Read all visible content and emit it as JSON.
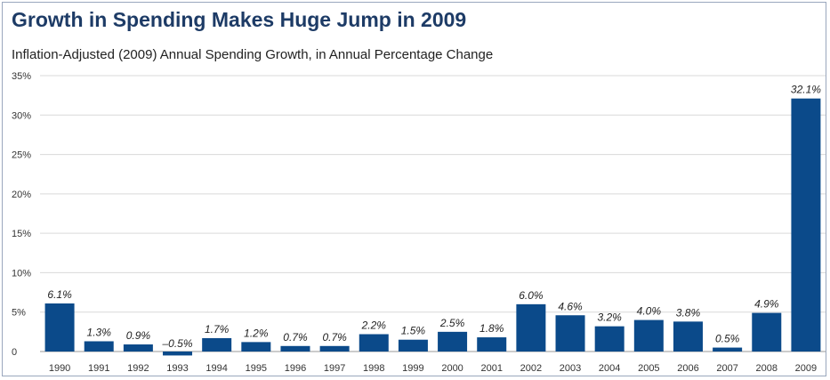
{
  "header": {
    "title": "Growth in Spending Makes Huge Jump in 2009",
    "subtitle": "Inflation-Adjusted (2009) Annual Spending Growth, in Annual Percentage Change"
  },
  "colors": {
    "bar": "#0b4a8a",
    "grid": "#d9d9d9",
    "text": "#333333",
    "title": "#1d3b66"
  },
  "chart_data": {
    "type": "bar",
    "title": "Growth in Spending Makes Huge Jump in 2009",
    "subtitle": "Inflation-Adjusted (2009) Annual Spending Growth, in Annual Percentage Change",
    "xlabel": "",
    "ylabel": "",
    "categories": [
      "1990",
      "1991",
      "1992",
      "1993",
      "1994",
      "1995",
      "1996",
      "1997",
      "1998",
      "1999",
      "2000",
      "2001",
      "2002",
      "2003",
      "2004",
      "2005",
      "2006",
      "2007",
      "2008",
      "2009"
    ],
    "values": [
      6.1,
      1.3,
      0.9,
      -0.5,
      1.7,
      1.2,
      0.7,
      0.7,
      2.2,
      1.5,
      2.5,
      1.8,
      6.0,
      4.6,
      3.2,
      4.0,
      3.8,
      0.5,
      4.9,
      32.1
    ],
    "data_labels": [
      "6.1%",
      "1.3%",
      "0.9%",
      "–0.5%",
      "1.7%",
      "1.2%",
      "0.7%",
      "0.7%",
      "2.2%",
      "1.5%",
      "2.5%",
      "1.8%",
      "6.0%",
      "4.6%",
      "3.2%",
      "4.0%",
      "3.8%",
      "0.5%",
      "4.9%",
      "32.1%"
    ],
    "y_ticks": [
      0,
      5,
      10,
      15,
      20,
      25,
      30,
      35
    ],
    "y_tick_labels": [
      "0",
      "5%",
      "10%",
      "15%",
      "20%",
      "25%",
      "30%",
      "35%"
    ],
    "ylim": [
      -0.8,
      35
    ],
    "grid": true,
    "legend": "none"
  }
}
